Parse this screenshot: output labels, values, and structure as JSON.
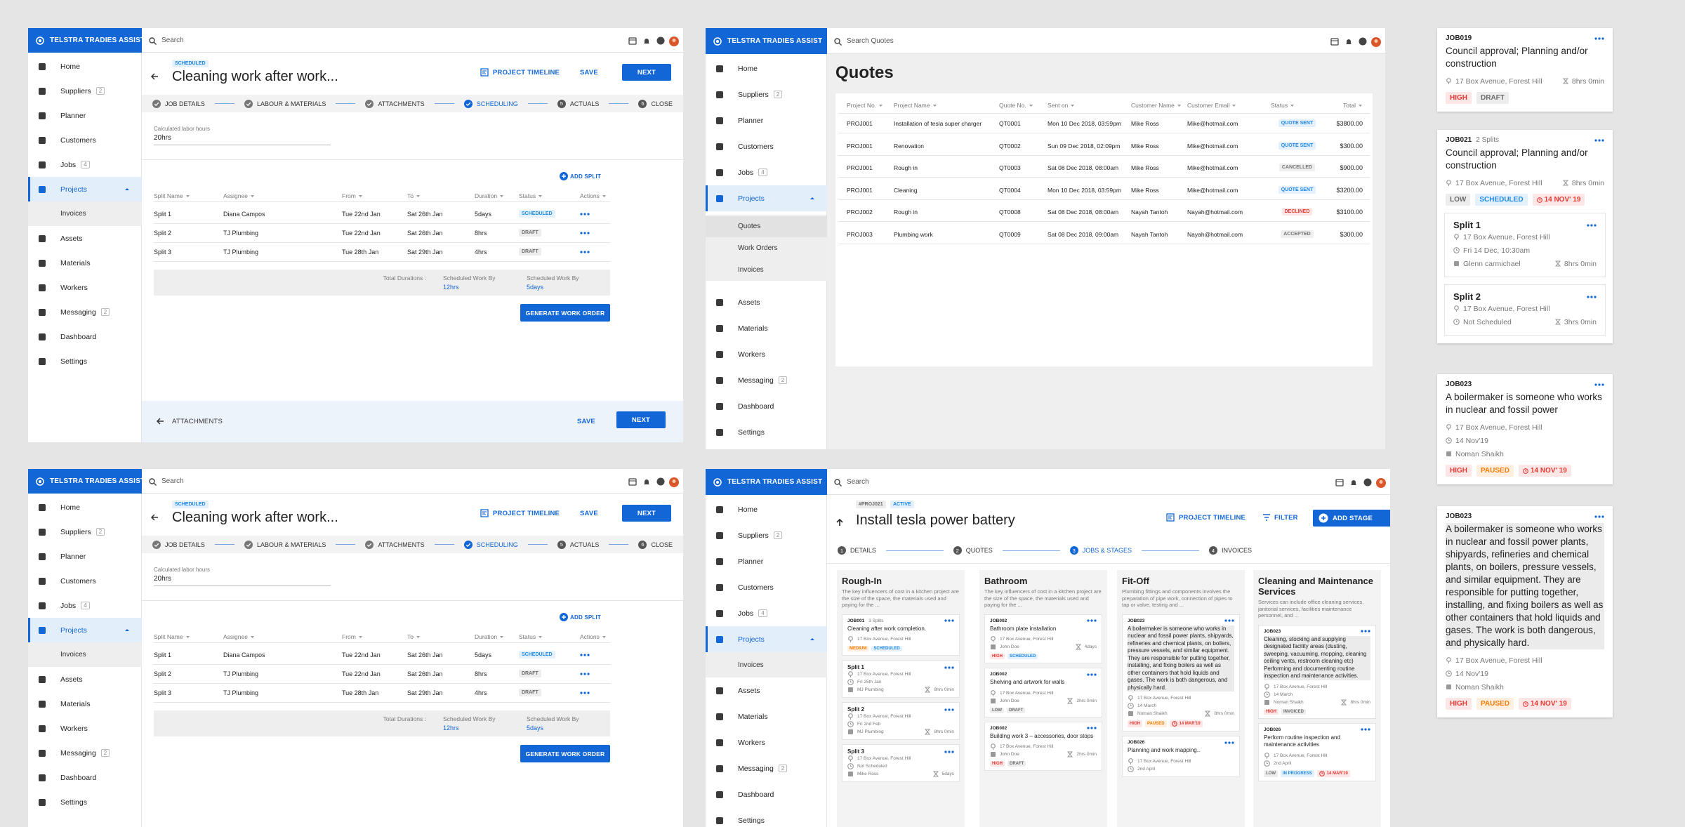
{
  "nav": {
    "brand": "TELSTRA TRADIES ASSIST",
    "items": [
      {
        "label": "Home"
      },
      {
        "label": "Suppliers",
        "badge": 2
      },
      {
        "label": "Planner"
      },
      {
        "label": "Customers"
      },
      {
        "label": "Jobs",
        "badge": 4
      },
      {
        "label": "Projects",
        "active": true
      },
      {
        "label": "Assets"
      },
      {
        "label": "Materials"
      },
      {
        "label": "Workers"
      },
      {
        "label": "Messaging",
        "badge": 2
      },
      {
        "label": "Dashboard"
      },
      {
        "label": "Settings"
      }
    ],
    "projects_sub": [
      {
        "label": "Invoices"
      }
    ],
    "quotes_sub": [
      {
        "label": "Quotes",
        "active": true
      },
      {
        "label": "Work Orders"
      },
      {
        "label": "Invoices"
      }
    ]
  },
  "search": "Search",
  "job": {
    "status": "SCHEDULED",
    "status_color": "#1e88e5",
    "title": "Cleaning work after work...",
    "timeline": "PROJECT TIMELINE",
    "save": "SAVE",
    "next": "NEXT",
    "steps": [
      {
        "label": "JOB DETAILS",
        "done": true
      },
      {
        "label": "LABOUR & MATERIALS",
        "done": true
      },
      {
        "label": "ATTACHMENTS",
        "done": true
      },
      {
        "label": "SCHEDULING",
        "done": true,
        "active": true
      },
      {
        "label": "ACTUALS",
        "num": 5
      },
      {
        "label": "CLOSE",
        "num": 6
      }
    ],
    "labor_label": "Calculated labor hours",
    "labor_value": "20hrs",
    "add_split": "ADD SPLIT",
    "columns": [
      "Split Name",
      "Assignee",
      "From",
      "To",
      "Duration",
      "Status",
      "Actions"
    ],
    "rows": [
      [
        "Split 1",
        "Diana Campos",
        "Tue 22nd Jan",
        "Sat 26th Jan",
        "5days",
        "SCHEDULED"
      ],
      [
        "Split 2",
        "TJ Plumbing",
        "Tue 22nd Jan",
        "Sat 26th Jan",
        "8hrs",
        "DRAFT"
      ],
      [
        "Split 3",
        "TJ Plumbing",
        "Tue 28th Jan",
        "Sat 29th Jan",
        "4hrs",
        "DRAFT"
      ]
    ],
    "row_status_colors": [
      "#1e88e5",
      "#6b6b6b",
      "#6b6b6b"
    ],
    "total_label": "Total Durations :",
    "sched_label": "Scheduled Work By",
    "sched_values": [
      "12hrs",
      "5days"
    ],
    "generate": "GENERATE WORK ORDER",
    "back": "ATTACHMENTS"
  },
  "quotes": {
    "search": "Search Quotes",
    "title": "Quotes",
    "columns": [
      "Project No.",
      "Project Name",
      "Quote No.",
      "Sent on",
      "Customer Name",
      "Customer Email",
      "Status",
      "Total"
    ],
    "rows": [
      [
        "PROJ001",
        "Installation of tesla super charger",
        "QT0001",
        "Mon 10 Dec 2018, 03:59pm",
        "Mike Ross",
        "Mike@hotmail.com",
        "QUOTE SENT",
        "$3800.00"
      ],
      [
        "PROJ001",
        "Renovation",
        "QT0002",
        "Sun 09 Dec 2018, 02:09pm",
        "Mike Ross",
        "Mike@hotmail.com",
        "QUOTE SENT",
        "$300.00"
      ],
      [
        "PROJ001",
        "Rough in",
        "QT0003",
        "Sat 08 Dec 2018, 08:00am",
        "Mike Ross",
        "Mike@hotmail.com",
        "CANCELLED",
        "$900.00"
      ],
      [
        "PROJ001",
        "Cleaning",
        "QT0004",
        "Mon 10 Dec 2018, 03:59pm",
        "Mike Ross",
        "Mike@hotmail.com",
        "QUOTE SENT",
        "$3200.00"
      ],
      [
        "PROJ002",
        "Rough in",
        "QT0008",
        "Sat 08 Dec 2018, 08:00am",
        "Nayah Tantoh",
        "Nayah@hotmail.com",
        "DECLINED",
        "$3100.00"
      ],
      [
        "PROJ003",
        "Plumbing work",
        "QT0009",
        "Sat 08 Dec 2018, 09:00am",
        "Nayah Tantoh",
        "Nayah@hotmail.com",
        "ACCEPTED",
        "$300.00"
      ]
    ],
    "status_colors": [
      "#1e88e5",
      "#1e88e5",
      "#757575",
      "#1e88e5",
      "#e53935",
      "#757575"
    ]
  },
  "project": {
    "code": "#PROJ021",
    "state": "ACTIVE",
    "title": "Install tesla power battery",
    "timeline": "PROJECT TIMELINE",
    "filter": "FILTER",
    "add_stage": "ADD STAGE",
    "steps": [
      {
        "label": "DETAILS",
        "num": 1
      },
      {
        "label": "QUOTES",
        "num": 2
      },
      {
        "label": "JOBS & STAGES",
        "num": 3,
        "active": true
      },
      {
        "label": "INVOICES",
        "num": 4
      }
    ],
    "stages": [
      {
        "title": "Rough-In",
        "desc": "The key influencers of cost in a kitchen project are the size of the space, the materials used and paying for the ...",
        "cards": [
          {
            "id": "JOB001",
            "splits": "3 Splits",
            "title": "Cleaning after work completion.",
            "address": "17 Box Avenue, Forest Hill",
            "tags": [
              {
                "text": "MEDIUM",
                "color": "#f57c00"
              },
              {
                "text": "SCHEDULED",
                "color": "#1e88e5"
              }
            ]
          },
          {
            "heading": "Split 1",
            "address": "17 Box Avenue, Forest Hill",
            "date": "Fri 25th Jan",
            "person": "MJ Plumbing",
            "duration": "8hrs 0min"
          },
          {
            "heading": "Split 2",
            "address": "17 Box Avenue, Forest Hill",
            "date": "Fri 2nd Feb",
            "person": "MJ Plumbing",
            "duration": "8hrs 0min"
          },
          {
            "heading": "Split 3",
            "address": "17 Box Avenue, Forest Hill",
            "person": "Mike Ross",
            "date": "Not Scheduled",
            "duration": "5days"
          }
        ]
      },
      {
        "title": "Bathroom",
        "desc": "The key influencers of cost in a kitchen project are the size of the space, the materials used and paying for the ...",
        "cards": [
          {
            "id": "JOB002",
            "title": "Bathroom plate installation",
            "address": "17 Box Avenue, Forest Hill",
            "person": "John Doe",
            "duration": "4days",
            "tags": [
              {
                "text": "HIGH",
                "color": "#e53935"
              },
              {
                "text": "SCHEDULED",
                "color": "#1e88e5"
              }
            ]
          },
          {
            "id": "JOB002",
            "title": "Shelving and artwork for walls",
            "address": "17 Box Avenue, Forest Hill",
            "person": "John Doe",
            "duration": "2hrs 0min",
            "tags": [
              {
                "text": "LOW",
                "color": "#6b6b6b"
              },
              {
                "text": "DRAFT",
                "color": "#6b6b6b"
              }
            ]
          },
          {
            "id": "JOB002",
            "title": "Building work 3 – accessories, door stops",
            "address": "17 Box Avenue, Forest Hill",
            "person": "John Doe",
            "duration": "2hrs 0min",
            "tags": [
              {
                "text": "HIGH",
                "color": "#e53935"
              },
              {
                "text": "DRAFT",
                "color": "#6b6b6b"
              }
            ]
          }
        ]
      },
      {
        "title": "Fit-Off",
        "desc": "Plumbing fittings and components involves the preparation of pipe work, connection of pipes to tap or valve, testing and ...",
        "cards": [
          {
            "id": "JOB023",
            "title": "A boilermaker is someone who works in nuclear and fossil power plants, shipyards, refineries and chemical plants, on boilers, pressure vessels, and similar equipment. They are responsible for putting together, installing, and fixing boilers as well as other containers that hold liquids and gases. The work is both dangerous, and physically hard.",
            "highlight": true,
            "address": "17 Box Avenue, Forest Hill",
            "date": "14 March",
            "person": "Noman Shaikh",
            "duration": "8hrs 0min",
            "tags": [
              {
                "text": "HIGH",
                "color": "#e53935"
              },
              {
                "text": "PAUSED",
                "color": "#f57c00"
              },
              {
                "text": "14 MAR'19",
                "color": "#e53935",
                "clock": true
              }
            ]
          },
          {
            "id": "JOB026",
            "title": "Planning and work mapping..",
            "address": "17 Box Avenue, Forest Hill",
            "date": "2nd April"
          }
        ]
      },
      {
        "title": "Cleaning and Maintenance Services",
        "desc": "Services can include office cleaning services, janitorial services, facilities maintenance personnel, and ...",
        "cards": [
          {
            "id": "JOB023",
            "title": "Cleaning, stocking and supplying designated facility areas (dusting, sweeping, vacuuming, mopping, cleaning ceiling vents, restroom cleaning etc) Performing and documenting routine inspection and maintenance activities.",
            "highlight": true,
            "address": "17 Box Avenue, Forest Hill",
            "date": "14 March",
            "person": "Noman Shaikh",
            "duration": "8hrs 0min",
            "tags": [
              {
                "text": "HIGH",
                "color": "#e53935"
              },
              {
                "text": "INVOICED",
                "color": "#6b6b6b"
              }
            ]
          },
          {
            "id": "JOB026",
            "title": "Perform routine inspection and maintenance activities",
            "address": "17 Box Avenue, Forest Hill",
            "date": "2nd April",
            "tags": [
              {
                "text": "LOW",
                "color": "#6b6b6b"
              },
              {
                "text": "IN PROGRESS",
                "color": "#1e88e5"
              },
              {
                "text": "14 MAR'19",
                "color": "#e53935",
                "clock": true
              }
            ]
          }
        ]
      }
    ]
  },
  "cards": [
    {
      "id": "JOB019",
      "title": "Council approval; Planning and/or construction",
      "address": "17 Box Avenue, Forest Hill",
      "duration": "8hrs 0min",
      "tags": [
        {
          "text": "HIGH",
          "color": "#e53935"
        },
        {
          "text": "DRAFT",
          "color": "#6b6b6b"
        }
      ]
    },
    {
      "id": "JOB021",
      "splits": "2 Splits",
      "title": "Council approval; Planning and/or construction",
      "address": "17 Box Avenue, Forest Hill",
      "duration": "8hrs 0min",
      "tags": [
        {
          "text": "LOW",
          "color": "#6b6b6b"
        },
        {
          "text": "SCHEDULED",
          "color": "#1e88e5"
        },
        {
          "text": "14 NOV' 19",
          "color": "#e53935",
          "clock": true
        }
      ],
      "children": [
        {
          "heading": "Split 1",
          "address": "17 Box Avenue, Forest Hill",
          "date": "Fri 14 Dec, 10:30am",
          "person": "Glenn carmichael",
          "duration": "8hrs 0min"
        },
        {
          "heading": "Split 2",
          "address": "17 Box Avenue, Forest Hill",
          "date": "Not Scheduled",
          "duration": "3hrs 0min"
        }
      ]
    },
    {
      "id": "JOB023",
      "title": "A boilermaker is someone who works in nuclear and fossil power",
      "address": "17 Box Avenue, Forest Hill",
      "date": "14 Nov'19",
      "person": "Noman Shaikh",
      "tags": [
        {
          "text": "HIGH",
          "color": "#e53935"
        },
        {
          "text": "PAUSED",
          "color": "#f57c00"
        },
        {
          "text": "14 NOV' 19",
          "color": "#e53935",
          "clock": true
        }
      ]
    },
    {
      "id": "JOB023",
      "title": "A boilermaker is someone who works in nuclear and fossil power plants, shipyards, refineries and chemical plants, on boilers, pressure vessels, and similar equipment. They are responsible for putting together, installing, and fixing boilers as well as other containers that hold liquids and gases. The work is both dangerous, and physically hard.",
      "highlight": true,
      "address": "17 Box Avenue, Forest Hill",
      "date": "14 Nov'19",
      "person": "Noman Shaikh",
      "tags": [
        {
          "text": "HIGH",
          "color": "#e53935"
        },
        {
          "text": "PAUSED",
          "color": "#f57c00"
        },
        {
          "text": "14 NOV' 19",
          "color": "#e53935",
          "clock": true
        }
      ]
    }
  ]
}
